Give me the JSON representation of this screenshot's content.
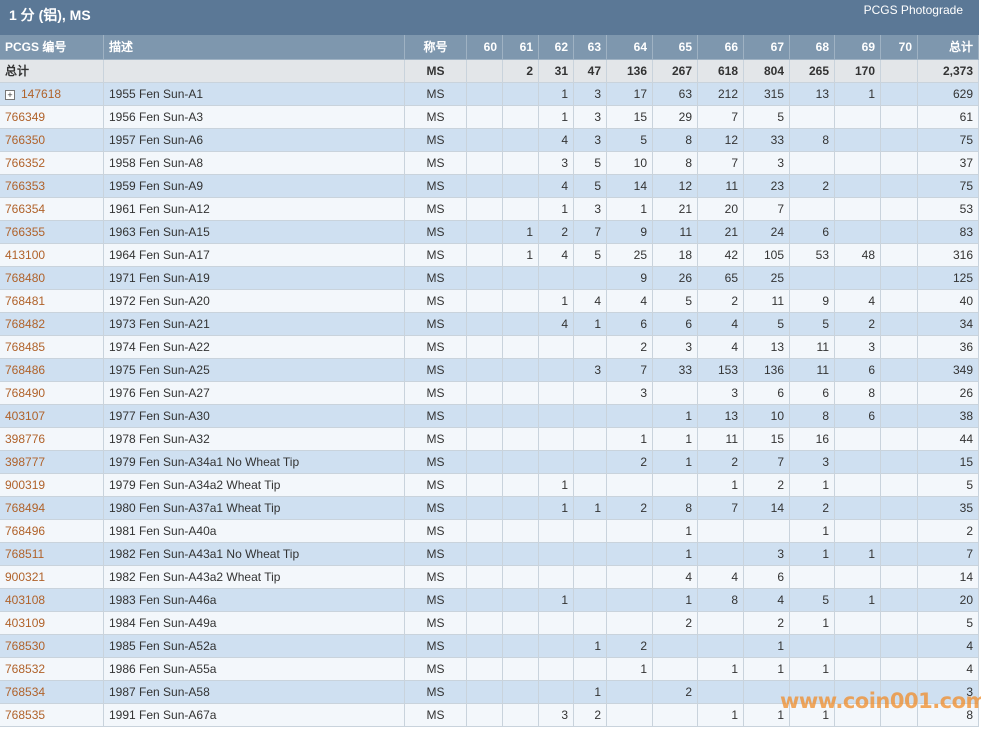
{
  "header": {
    "title": "1 分 (铝), MS",
    "right": "PCGS Photograde"
  },
  "table": {
    "columns": [
      "PCGS 编号",
      "描述",
      "称号",
      "60",
      "61",
      "62",
      "63",
      "64",
      "65",
      "66",
      "67",
      "68",
      "69",
      "70",
      "总计"
    ],
    "total": {
      "label": "总计",
      "grade": "MS",
      "cells": [
        null,
        2,
        31,
        47,
        136,
        267,
        618,
        804,
        265,
        170,
        null
      ],
      "total": "2,373"
    },
    "rows": [
      {
        "id": "147618",
        "desc": "1955 Fen Sun-A1",
        "grade": "MS",
        "cells": [
          null,
          null,
          1,
          3,
          17,
          63,
          212,
          315,
          13,
          1,
          null
        ],
        "total": 629
      },
      {
        "id": "766349",
        "desc": "1956 Fen Sun-A3",
        "grade": "MS",
        "cells": [
          null,
          null,
          1,
          3,
          15,
          29,
          7,
          5,
          null,
          null,
          null
        ],
        "total": 61
      },
      {
        "id": "766350",
        "desc": "1957 Fen Sun-A6",
        "grade": "MS",
        "cells": [
          null,
          null,
          4,
          3,
          5,
          8,
          12,
          33,
          8,
          null,
          null
        ],
        "total": 75
      },
      {
        "id": "766352",
        "desc": "1958 Fen Sun-A8",
        "grade": "MS",
        "cells": [
          null,
          null,
          3,
          5,
          10,
          8,
          7,
          3,
          null,
          null,
          null
        ],
        "total": 37
      },
      {
        "id": "766353",
        "desc": "1959 Fen Sun-A9",
        "grade": "MS",
        "cells": [
          null,
          null,
          4,
          5,
          14,
          12,
          11,
          23,
          2,
          null,
          null
        ],
        "total": 75
      },
      {
        "id": "766354",
        "desc": "1961 Fen Sun-A12",
        "grade": "MS",
        "cells": [
          null,
          null,
          1,
          3,
          1,
          21,
          20,
          7,
          null,
          null,
          null
        ],
        "total": 53
      },
      {
        "id": "766355",
        "desc": "1963 Fen Sun-A15",
        "grade": "MS",
        "cells": [
          null,
          1,
          2,
          7,
          9,
          11,
          21,
          24,
          6,
          null,
          null
        ],
        "total": 83
      },
      {
        "id": "413100",
        "desc": "1964 Fen Sun-A17",
        "grade": "MS",
        "cells": [
          null,
          1,
          4,
          5,
          25,
          18,
          42,
          105,
          53,
          48,
          null
        ],
        "total": 316
      },
      {
        "id": "768480",
        "desc": "1971 Fen Sun-A19",
        "grade": "MS",
        "cells": [
          null,
          null,
          null,
          null,
          9,
          26,
          65,
          25,
          null,
          null,
          null
        ],
        "total": 125
      },
      {
        "id": "768481",
        "desc": "1972 Fen Sun-A20",
        "grade": "MS",
        "cells": [
          null,
          null,
          1,
          4,
          4,
          5,
          2,
          11,
          9,
          4,
          null
        ],
        "total": 40
      },
      {
        "id": "768482",
        "desc": "1973 Fen Sun-A21",
        "grade": "MS",
        "cells": [
          null,
          null,
          4,
          1,
          6,
          6,
          4,
          5,
          5,
          2,
          null
        ],
        "total": 34
      },
      {
        "id": "768485",
        "desc": "1974 Fen Sun-A22",
        "grade": "MS",
        "cells": [
          null,
          null,
          null,
          null,
          2,
          3,
          4,
          13,
          11,
          3,
          null
        ],
        "total": 36
      },
      {
        "id": "768486",
        "desc": "1975 Fen Sun-A25",
        "grade": "MS",
        "cells": [
          null,
          null,
          null,
          3,
          7,
          33,
          153,
          136,
          11,
          6,
          null
        ],
        "total": 349
      },
      {
        "id": "768490",
        "desc": "1976 Fen Sun-A27",
        "grade": "MS",
        "cells": [
          null,
          null,
          null,
          null,
          3,
          null,
          3,
          6,
          6,
          8,
          null
        ],
        "total": 26
      },
      {
        "id": "403107",
        "desc": "1977 Fen Sun-A30",
        "grade": "MS",
        "cells": [
          null,
          null,
          null,
          null,
          null,
          1,
          13,
          10,
          8,
          6,
          null
        ],
        "total": 38
      },
      {
        "id": "398776",
        "desc": "1978 Fen Sun-A32",
        "grade": "MS",
        "cells": [
          null,
          null,
          null,
          null,
          1,
          1,
          11,
          15,
          16,
          null,
          null
        ],
        "total": 44
      },
      {
        "id": "398777",
        "desc": "1979 Fen Sun-A34a1 No Wheat Tip",
        "grade": "MS",
        "cells": [
          null,
          null,
          null,
          null,
          2,
          1,
          2,
          7,
          3,
          null,
          null
        ],
        "total": 15
      },
      {
        "id": "900319",
        "desc": "1979 Fen Sun-A34a2 Wheat Tip",
        "grade": "MS",
        "cells": [
          null,
          null,
          1,
          null,
          null,
          null,
          1,
          2,
          1,
          null,
          null
        ],
        "total": 5
      },
      {
        "id": "768494",
        "desc": "1980 Fen Sun-A37a1 Wheat Tip",
        "grade": "MS",
        "cells": [
          null,
          null,
          1,
          1,
          2,
          8,
          7,
          14,
          2,
          null,
          null
        ],
        "total": 35
      },
      {
        "id": "768496",
        "desc": "1981 Fen Sun-A40a",
        "grade": "MS",
        "cells": [
          null,
          null,
          null,
          null,
          null,
          1,
          null,
          null,
          1,
          null,
          null
        ],
        "total": 2
      },
      {
        "id": "768511",
        "desc": "1982 Fen Sun-A43a1 No Wheat Tip",
        "grade": "MS",
        "cells": [
          null,
          null,
          null,
          null,
          null,
          1,
          null,
          3,
          1,
          1,
          null
        ],
        "total": 7
      },
      {
        "id": "900321",
        "desc": "1982 Fen Sun-A43a2 Wheat Tip",
        "grade": "MS",
        "cells": [
          null,
          null,
          null,
          null,
          null,
          4,
          4,
          6,
          null,
          null,
          null
        ],
        "total": 14
      },
      {
        "id": "403108",
        "desc": "1983 Fen Sun-A46a",
        "grade": "MS",
        "cells": [
          null,
          null,
          1,
          null,
          null,
          1,
          8,
          4,
          5,
          1,
          null
        ],
        "total": 20
      },
      {
        "id": "403109",
        "desc": "1984 Fen Sun-A49a",
        "grade": "MS",
        "cells": [
          null,
          null,
          null,
          null,
          null,
          2,
          null,
          2,
          1,
          null,
          null
        ],
        "total": 5
      },
      {
        "id": "768530",
        "desc": "1985 Fen Sun-A52a",
        "grade": "MS",
        "cells": [
          null,
          null,
          null,
          1,
          2,
          null,
          null,
          1,
          null,
          null,
          null
        ],
        "total": 4
      },
      {
        "id": "768532",
        "desc": "1986 Fen Sun-A55a",
        "grade": "MS",
        "cells": [
          null,
          null,
          null,
          null,
          1,
          null,
          1,
          1,
          1,
          null,
          null
        ],
        "total": 4
      },
      {
        "id": "768534",
        "desc": "1987 Fen Sun-A58",
        "grade": "MS",
        "cells": [
          null,
          null,
          null,
          1,
          null,
          2,
          null,
          null,
          null,
          null,
          null
        ],
        "total": 3
      },
      {
        "id": "768535",
        "desc": "1991 Fen Sun-A67a",
        "grade": "MS",
        "cells": [
          null,
          null,
          3,
          2,
          null,
          null,
          1,
          1,
          1,
          null,
          null
        ],
        "total": 8
      }
    ]
  },
  "watermark": "www.coin001.com"
}
